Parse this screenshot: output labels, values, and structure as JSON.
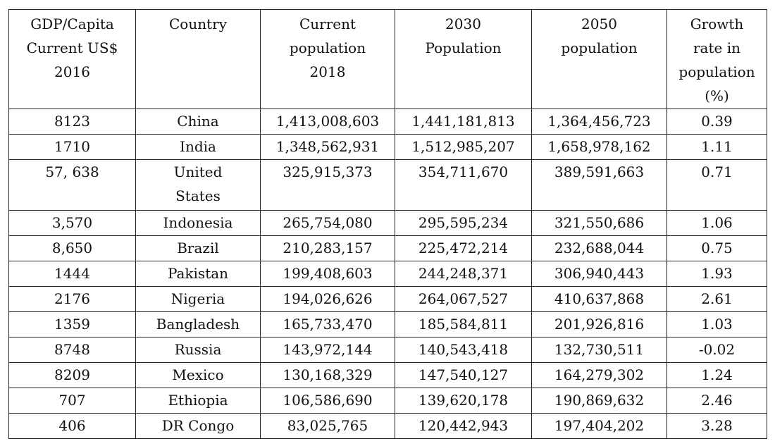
{
  "table": {
    "headers": [
      [
        "GDP/Capita",
        "Current US$",
        "2016"
      ],
      [
        "Country"
      ],
      [
        "Current",
        "population",
        "2018"
      ],
      [
        "2030",
        "Population"
      ],
      [
        "2050",
        "population"
      ],
      [
        "Growth",
        "rate in",
        "population",
        "(%)"
      ]
    ],
    "rows": [
      {
        "gdp": "8123",
        "country": [
          "China"
        ],
        "pop2018": "1,413,008,603",
        "pop2030": "1,441,181,813",
        "pop2050": "1,364,456,723",
        "growth": "0.39"
      },
      {
        "gdp": "1710",
        "country": [
          "India"
        ],
        "pop2018": "1,348,562,931",
        "pop2030": "1,512,985,207",
        "pop2050": "1,658,978,162",
        "growth": "1.11"
      },
      {
        "gdp": "57, 638",
        "country": [
          "United",
          "States"
        ],
        "pop2018": "325,915,373",
        "pop2030": "354,711,670",
        "pop2050": "389,591,663",
        "growth": "0.71"
      },
      {
        "gdp": "3,570",
        "country": [
          "Indonesia"
        ],
        "pop2018": "265,754,080",
        "pop2030": "295,595,234",
        "pop2050": "321,550,686",
        "growth": "1.06"
      },
      {
        "gdp": "8,650",
        "country": [
          "Brazil"
        ],
        "pop2018": "210,283,157",
        "pop2030": "225,472,214",
        "pop2050": "232,688,044",
        "growth": "0.75"
      },
      {
        "gdp": "1444",
        "country": [
          "Pakistan"
        ],
        "pop2018": "199,408,603",
        "pop2030": "244,248,371",
        "pop2050": "306,940,443",
        "growth": "1.93"
      },
      {
        "gdp": "2176",
        "country": [
          "Nigeria"
        ],
        "pop2018": "194,026,626",
        "pop2030": "264,067,527",
        "pop2050": "410,637,868",
        "growth": "2.61"
      },
      {
        "gdp": "1359",
        "country": [
          "Bangladesh"
        ],
        "pop2018": "165,733,470",
        "pop2030": "185,584,811",
        "pop2050": "201,926,816",
        "growth": "1.03"
      },
      {
        "gdp": "8748",
        "country": [
          "Russia"
        ],
        "pop2018": "143,972,144",
        "pop2030": "140,543,418",
        "pop2050": "132,730,511",
        "growth": "-0.02"
      },
      {
        "gdp": "8209",
        "country": [
          "Mexico"
        ],
        "pop2018": "130,168,329",
        "pop2030": "147,540,127",
        "pop2050": "164,279,302",
        "growth": "1.24"
      },
      {
        "gdp": "707",
        "country": [
          "Ethiopia"
        ],
        "pop2018": "106,586,690",
        "pop2030": "139,620,178",
        "pop2050": "190,869,632",
        "growth": "2.46"
      },
      {
        "gdp": "406",
        "country": [
          "DR Congo"
        ],
        "pop2018": "83,025,765",
        "pop2030": "120,442,943",
        "pop2050": "197,404,202",
        "growth": "3.28"
      }
    ]
  }
}
